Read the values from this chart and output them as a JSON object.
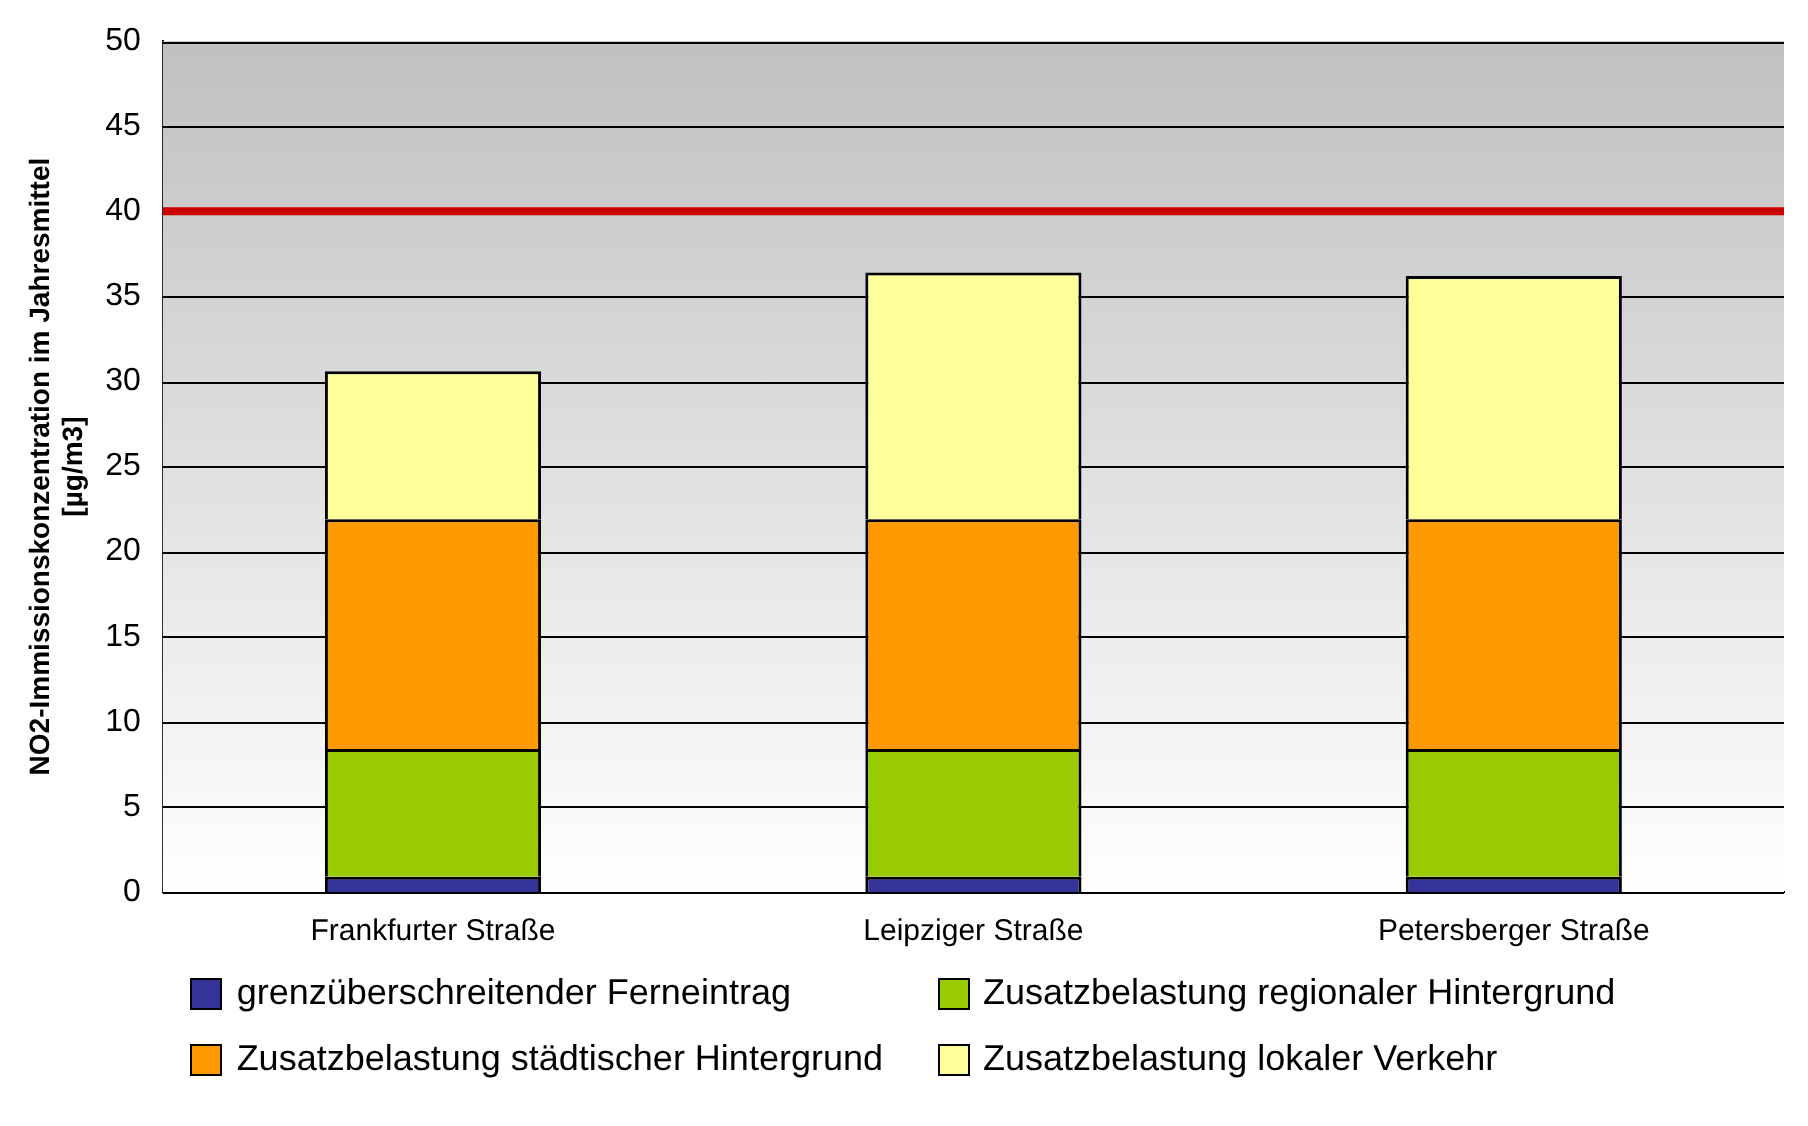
{
  "chart_data": {
    "type": "bar",
    "stacked": true,
    "ylabel": "NO2-Immissionskonzentration im Jahresmittel\n[µg/m3]",
    "categories": [
      "Frankfurter Straße",
      "Leipziger Straße",
      "Petersberger Straße"
    ],
    "series": [
      {
        "name": "grenzüberschreitender Ferneintrag",
        "color": "#333399",
        "values": [
          0.9,
          0.9,
          0.9
        ]
      },
      {
        "name": "Zusatzbelastung regionaler Hintergrund",
        "color": "#99cc00",
        "values": [
          7.5,
          7.5,
          7.5
        ]
      },
      {
        "name": "Zusatzbelastung städtischer Hintergrund",
        "color": "#ff9900",
        "values": [
          13.5,
          13.5,
          13.5
        ]
      },
      {
        "name": "Zusatzbelastung lokaler Verkehr",
        "color": "#ffff99",
        "values": [
          8.7,
          14.5,
          14.3
        ]
      }
    ],
    "ylim": [
      0,
      50
    ],
    "yticks": [
      0,
      5,
      10,
      15,
      20,
      25,
      30,
      35,
      40,
      45,
      50
    ],
    "grid": "y",
    "legend": "bottom",
    "ref_lines": [
      {
        "axis": "y",
        "value": 40,
        "color": "#cc0000"
      }
    ]
  }
}
